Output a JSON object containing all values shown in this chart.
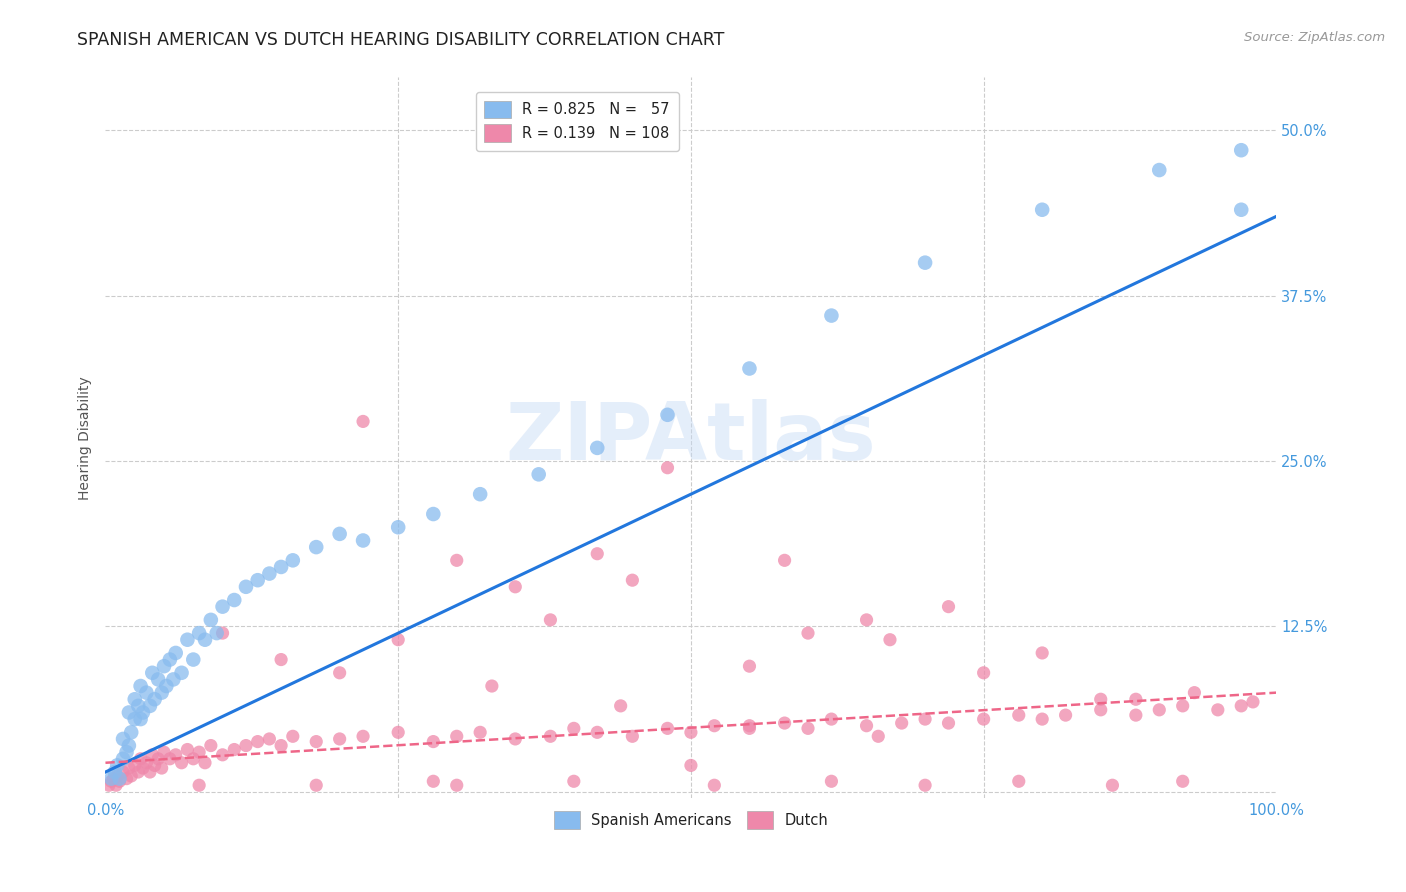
{
  "title": "SPANISH AMERICAN VS DUTCH HEARING DISABILITY CORRELATION CHART",
  "source": "Source: ZipAtlas.com",
  "ylabel": "Hearing Disability",
  "xlim": [
    0.0,
    1.0
  ],
  "ylim": [
    -0.005,
    0.54
  ],
  "yticks": [
    0.0,
    0.125,
    0.25,
    0.375,
    0.5
  ],
  "ytick_labels": [
    "",
    "12.5%",
    "25.0%",
    "37.5%",
    "50.0%"
  ],
  "xticks": [
    0.0,
    0.25,
    0.5,
    0.75,
    1.0
  ],
  "xtick_labels": [
    "0.0%",
    "",
    "",
    "",
    "100.0%"
  ],
  "watermark": "ZIPAtlas",
  "blue_scatter_color": "#88bbee",
  "pink_scatter_color": "#ee88aa",
  "blue_line_color": "#2277dd",
  "pink_line_color": "#ee6688",
  "grid_color": "#cccccc",
  "axis_color": "#4499dd",
  "title_color": "#222222",
  "title_fontsize": 12.5,
  "source_fontsize": 9.5,
  "axis_label_fontsize": 10,
  "tick_fontsize": 10.5,
  "legend_fontsize": 10.5,
  "blue_line_x": [
    0.0,
    1.0
  ],
  "blue_line_y": [
    0.015,
    0.435
  ],
  "pink_line_x": [
    0.0,
    1.0
  ],
  "pink_line_y": [
    0.022,
    0.075
  ],
  "blue_scatter_x": [
    0.005,
    0.008,
    0.01,
    0.012,
    0.015,
    0.015,
    0.018,
    0.02,
    0.02,
    0.022,
    0.025,
    0.025,
    0.028,
    0.03,
    0.03,
    0.032,
    0.035,
    0.038,
    0.04,
    0.042,
    0.045,
    0.048,
    0.05,
    0.052,
    0.055,
    0.058,
    0.06,
    0.065,
    0.07,
    0.075,
    0.08,
    0.085,
    0.09,
    0.095,
    0.1,
    0.11,
    0.12,
    0.13,
    0.14,
    0.15,
    0.16,
    0.18,
    0.2,
    0.22,
    0.25,
    0.28,
    0.32,
    0.37,
    0.42,
    0.48,
    0.55,
    0.62,
    0.7,
    0.8,
    0.9,
    0.97,
    0.97
  ],
  "blue_scatter_y": [
    0.01,
    0.015,
    0.02,
    0.01,
    0.025,
    0.04,
    0.03,
    0.035,
    0.06,
    0.045,
    0.055,
    0.07,
    0.065,
    0.055,
    0.08,
    0.06,
    0.075,
    0.065,
    0.09,
    0.07,
    0.085,
    0.075,
    0.095,
    0.08,
    0.1,
    0.085,
    0.105,
    0.09,
    0.115,
    0.1,
    0.12,
    0.115,
    0.13,
    0.12,
    0.14,
    0.145,
    0.155,
    0.16,
    0.165,
    0.17,
    0.175,
    0.185,
    0.195,
    0.19,
    0.2,
    0.21,
    0.225,
    0.24,
    0.26,
    0.285,
    0.32,
    0.36,
    0.4,
    0.44,
    0.47,
    0.44,
    0.485
  ],
  "pink_scatter_x": [
    0.003,
    0.005,
    0.007,
    0.009,
    0.01,
    0.012,
    0.015,
    0.018,
    0.02,
    0.022,
    0.025,
    0.028,
    0.03,
    0.032,
    0.035,
    0.038,
    0.04,
    0.042,
    0.045,
    0.048,
    0.05,
    0.055,
    0.06,
    0.065,
    0.07,
    0.075,
    0.08,
    0.085,
    0.09,
    0.1,
    0.11,
    0.12,
    0.13,
    0.14,
    0.15,
    0.16,
    0.18,
    0.2,
    0.22,
    0.25,
    0.28,
    0.3,
    0.32,
    0.35,
    0.38,
    0.4,
    0.42,
    0.45,
    0.48,
    0.5,
    0.52,
    0.55,
    0.58,
    0.6,
    0.62,
    0.65,
    0.68,
    0.7,
    0.72,
    0.75,
    0.78,
    0.8,
    0.82,
    0.85,
    0.88,
    0.9,
    0.92,
    0.95,
    0.97,
    0.98,
    0.1,
    0.15,
    0.2,
    0.25,
    0.3,
    0.38,
    0.45,
    0.55,
    0.6,
    0.67,
    0.75,
    0.8,
    0.88,
    0.93,
    0.22,
    0.35,
    0.48,
    0.58,
    0.72,
    0.85,
    0.3,
    0.4,
    0.52,
    0.62,
    0.7,
    0.78,
    0.86,
    0.92,
    0.42,
    0.65,
    0.5,
    0.28,
    0.18,
    0.08,
    0.33,
    0.55,
    0.44,
    0.66
  ],
  "pink_scatter_y": [
    0.005,
    0.008,
    0.01,
    0.005,
    0.012,
    0.008,
    0.015,
    0.01,
    0.018,
    0.012,
    0.02,
    0.015,
    0.025,
    0.018,
    0.022,
    0.015,
    0.028,
    0.02,
    0.025,
    0.018,
    0.03,
    0.025,
    0.028,
    0.022,
    0.032,
    0.025,
    0.03,
    0.022,
    0.035,
    0.028,
    0.032,
    0.035,
    0.038,
    0.04,
    0.035,
    0.042,
    0.038,
    0.04,
    0.042,
    0.045,
    0.038,
    0.042,
    0.045,
    0.04,
    0.042,
    0.048,
    0.045,
    0.042,
    0.048,
    0.045,
    0.05,
    0.048,
    0.052,
    0.048,
    0.055,
    0.05,
    0.052,
    0.055,
    0.052,
    0.055,
    0.058,
    0.055,
    0.058,
    0.062,
    0.058,
    0.062,
    0.065,
    0.062,
    0.065,
    0.068,
    0.12,
    0.1,
    0.09,
    0.115,
    0.175,
    0.13,
    0.16,
    0.095,
    0.12,
    0.115,
    0.09,
    0.105,
    0.07,
    0.075,
    0.28,
    0.155,
    0.245,
    0.175,
    0.14,
    0.07,
    0.005,
    0.008,
    0.005,
    0.008,
    0.005,
    0.008,
    0.005,
    0.008,
    0.18,
    0.13,
    0.02,
    0.008,
    0.005,
    0.005,
    0.08,
    0.05,
    0.065,
    0.042
  ]
}
